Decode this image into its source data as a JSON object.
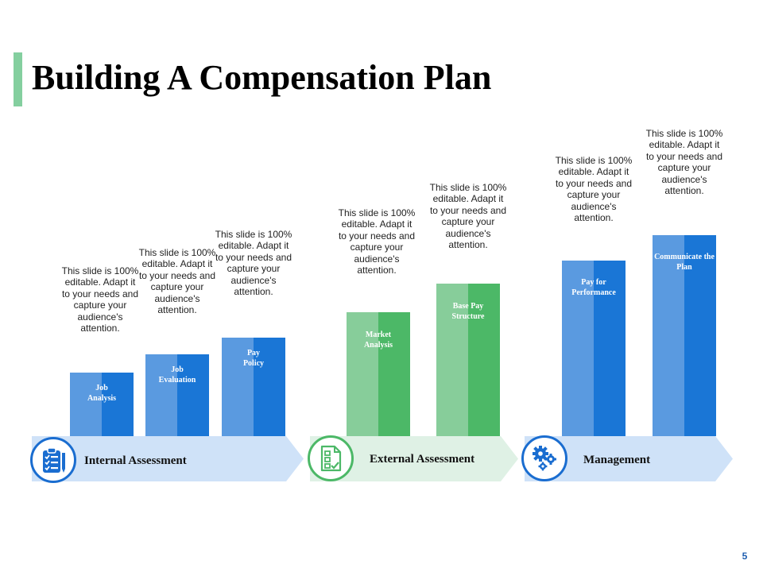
{
  "title": "Building A Compensation Plan",
  "page_number": "5",
  "colors": {
    "accent": "#84cf9f",
    "blue_light": "#5a9ae0",
    "blue_dark": "#1a76d6",
    "green_light": "#87cd9a",
    "green_dark": "#4cb867",
    "band_blue": "#cfe2f8",
    "band_green": "#dff1e5",
    "icon_blue": "#1a6dd0",
    "icon_green": "#4cb867"
  },
  "caption_text": "This slide is 100% editable. Adapt it to your needs and capture your audience's attention.",
  "groups": [
    {
      "label": "Internal Assessment",
      "icon": "clipboard-checklist-icon",
      "color": "blue",
      "bars": [
        {
          "label": "Job Analysis",
          "level": 1
        },
        {
          "label": "Job Evaluation",
          "level": 2
        },
        {
          "label": "Pay Policy",
          "level": 3
        }
      ]
    },
    {
      "label": "External Assessment",
      "icon": "document-checklist-icon",
      "color": "green",
      "bars": [
        {
          "label": "Market Analysis",
          "level": 4
        },
        {
          "label": "Base Pay Structure",
          "level": 5
        }
      ]
    },
    {
      "label": "Management",
      "icon": "gears-icon",
      "color": "blue",
      "bars": [
        {
          "label": "Pay for Performance",
          "level": 6
        },
        {
          "label": "Communicate the Plan",
          "level": 7
        }
      ]
    }
  ]
}
